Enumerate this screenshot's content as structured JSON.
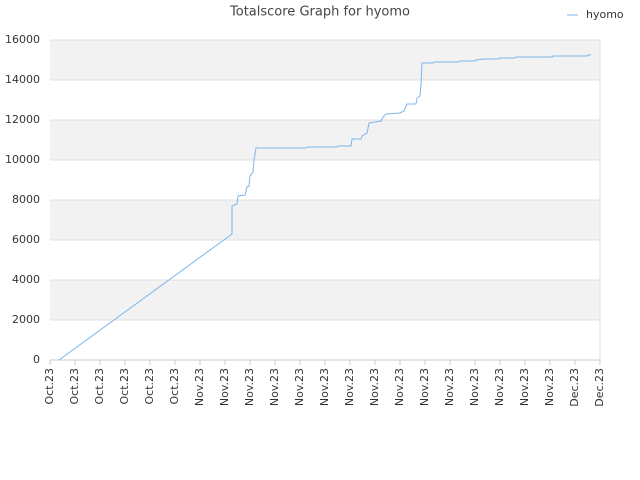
{
  "chart_data": {
    "type": "line",
    "title": "Totalscore Graph for hyomo",
    "xlim": [
      0,
      22
    ],
    "xticks": [
      {
        "value": 0,
        "label": "Oct.23"
      },
      {
        "value": 1,
        "label": "Oct.23"
      },
      {
        "value": 2,
        "label": "Oct.23"
      },
      {
        "value": 3,
        "label": "Oct.23"
      },
      {
        "value": 4,
        "label": "Oct.23"
      },
      {
        "value": 5,
        "label": "Oct.23"
      },
      {
        "value": 6,
        "label": "Nov.23"
      },
      {
        "value": 7,
        "label": "Nov.23"
      },
      {
        "value": 8,
        "label": "Nov.23"
      },
      {
        "value": 9,
        "label": "Nov.23"
      },
      {
        "value": 10,
        "label": "Nov.23"
      },
      {
        "value": 11,
        "label": "Nov.23"
      },
      {
        "value": 12,
        "label": "Nov.23"
      },
      {
        "value": 13,
        "label": "Nov.23"
      },
      {
        "value": 14,
        "label": "Nov.23"
      },
      {
        "value": 15,
        "label": "Nov.23"
      },
      {
        "value": 16,
        "label": "Nov.23"
      },
      {
        "value": 17,
        "label": "Nov.23"
      },
      {
        "value": 18,
        "label": "Nov.23"
      },
      {
        "value": 19,
        "label": "Nov.23"
      },
      {
        "value": 20,
        "label": "Nov.23"
      },
      {
        "value": 21,
        "label": "Dec.23"
      },
      {
        "value": 22,
        "label": "Dec.23"
      }
    ],
    "ylim": [
      0,
      16000
    ],
    "yticks": [
      0,
      2000,
      4000,
      6000,
      8000,
      10000,
      12000,
      14000,
      16000
    ],
    "grid": true,
    "legend": "top-right",
    "series": [
      {
        "name": "hyomo",
        "color": "#7cb5ec",
        "x": [
          0.36,
          7.28,
          7.28,
          7.48,
          7.52,
          7.8,
          7.88,
          7.96,
          8.0,
          8.12,
          8.16,
          8.24,
          10.24,
          10.28,
          11.48,
          11.52,
          12.04,
          12.08,
          12.44,
          12.48,
          12.68,
          12.76,
          13.0,
          13.24,
          13.32,
          13.44,
          14.0,
          14.16,
          14.28,
          14.64,
          14.68,
          14.8,
          14.84,
          14.88,
          15.32,
          15.36,
          16.36,
          16.4,
          17.0,
          17.04,
          17.32,
          17.96,
          18.0,
          18.6,
          18.64,
          20.08,
          20.12,
          21.48,
          21.52,
          21.64
        ],
        "values": [
          0,
          6300,
          7700,
          7800,
          8200,
          8250,
          8650,
          8700,
          9200,
          9400,
          10000,
          10600,
          10600,
          10650,
          10650,
          10700,
          10700,
          11050,
          11050,
          11200,
          11350,
          11850,
          11900,
          11950,
          12150,
          12300,
          12350,
          12450,
          12800,
          12800,
          13100,
          13200,
          13800,
          14850,
          14850,
          14900,
          14900,
          14950,
          14950,
          15000,
          15050,
          15050,
          15100,
          15100,
          15150,
          15150,
          15200,
          15200,
          15250,
          15250
        ]
      }
    ]
  }
}
